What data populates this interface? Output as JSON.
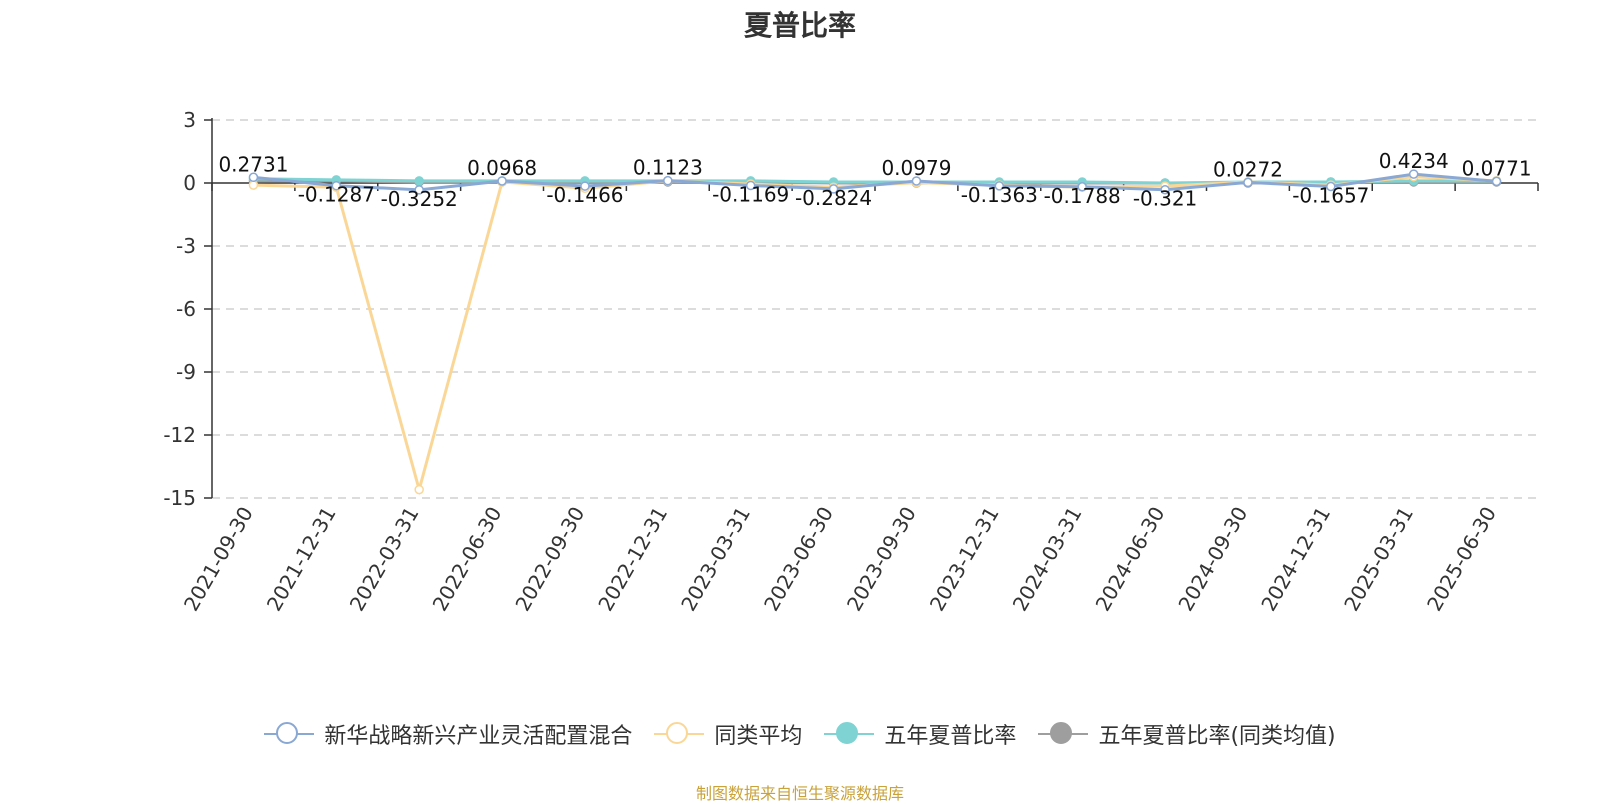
{
  "title": "夏普比率",
  "source": "制图数据来自恒生聚源数据库",
  "legend": [
    {
      "name": "新华战略新兴产业灵活配置混合",
      "color": "#8aa8d4",
      "filled": false
    },
    {
      "name": "同类平均",
      "color": "#fad797",
      "filled": false
    },
    {
      "name": "五年夏普比率",
      "color": "#7fd3d3",
      "filled": true
    },
    {
      "name": "五年夏普比率(同类均值)",
      "color": "#9e9e9e",
      "filled": true
    }
  ],
  "chart_data": {
    "type": "line",
    "title": "夏普比率",
    "x": [
      "2021-09-30",
      "2021-12-31",
      "2022-03-31",
      "2022-06-30",
      "2022-09-30",
      "2022-12-31",
      "2023-03-31",
      "2023-06-30",
      "2023-09-30",
      "2023-12-31",
      "2024-03-31",
      "2024-06-30",
      "2024-09-30",
      "2024-12-31",
      "2025-03-31",
      "2025-06-30"
    ],
    "ylim": [
      -15,
      3
    ],
    "yticks": [
      3,
      0,
      -3,
      -6,
      -9,
      -12,
      -15
    ],
    "grid": true,
    "legend_position": "bottom",
    "series": [
      {
        "name": "新华战略新兴产业灵活配置混合",
        "color": "#8aa8d4",
        "values": [
          0.2731,
          -0.1287,
          -0.3252,
          0.0968,
          -0.1466,
          0.1123,
          -0.1169,
          -0.2824,
          0.0979,
          -0.1363,
          -0.1788,
          -0.321,
          0.0272,
          -0.1657,
          0.4234,
          0.0771
        ],
        "labels": [
          "0.2731",
          "-0.1287",
          "-0.3252",
          "0.0968",
          "-0.1466",
          "0.1123",
          "-0.1169",
          "-0.2824",
          "0.0979",
          "-0.1363",
          "-0.1788",
          "-0.321",
          "0.0272",
          "-0.1657",
          "0.4234",
          "0.0771"
        ]
      },
      {
        "name": "同类平均",
        "color": "#fad797",
        "values": [
          -0.1,
          -0.2,
          -14.6,
          0.05,
          -0.25,
          0.1,
          -0.05,
          -0.2,
          0.02,
          -0.1,
          -0.2,
          -0.15,
          0.05,
          -0.1,
          0.3,
          0.1
        ]
      },
      {
        "name": "五年夏普比率",
        "color": "#7fd3d3",
        "values": [
          0.2,
          0.15,
          0.1,
          0.1,
          0.1,
          0.1,
          0.1,
          0.05,
          0.05,
          0.05,
          0.05,
          0.0,
          0.05,
          0.05,
          0.1,
          0.1
        ]
      },
      {
        "name": "五年夏普比率(同类均值)",
        "color": "#9e9e9e",
        "values": [
          0.1,
          0.1,
          0.05,
          0.05,
          0.05,
          0.05,
          0.05,
          0.0,
          0.0,
          0.0,
          0.0,
          0.0,
          0.0,
          0.05,
          0.05,
          0.05
        ]
      }
    ]
  }
}
